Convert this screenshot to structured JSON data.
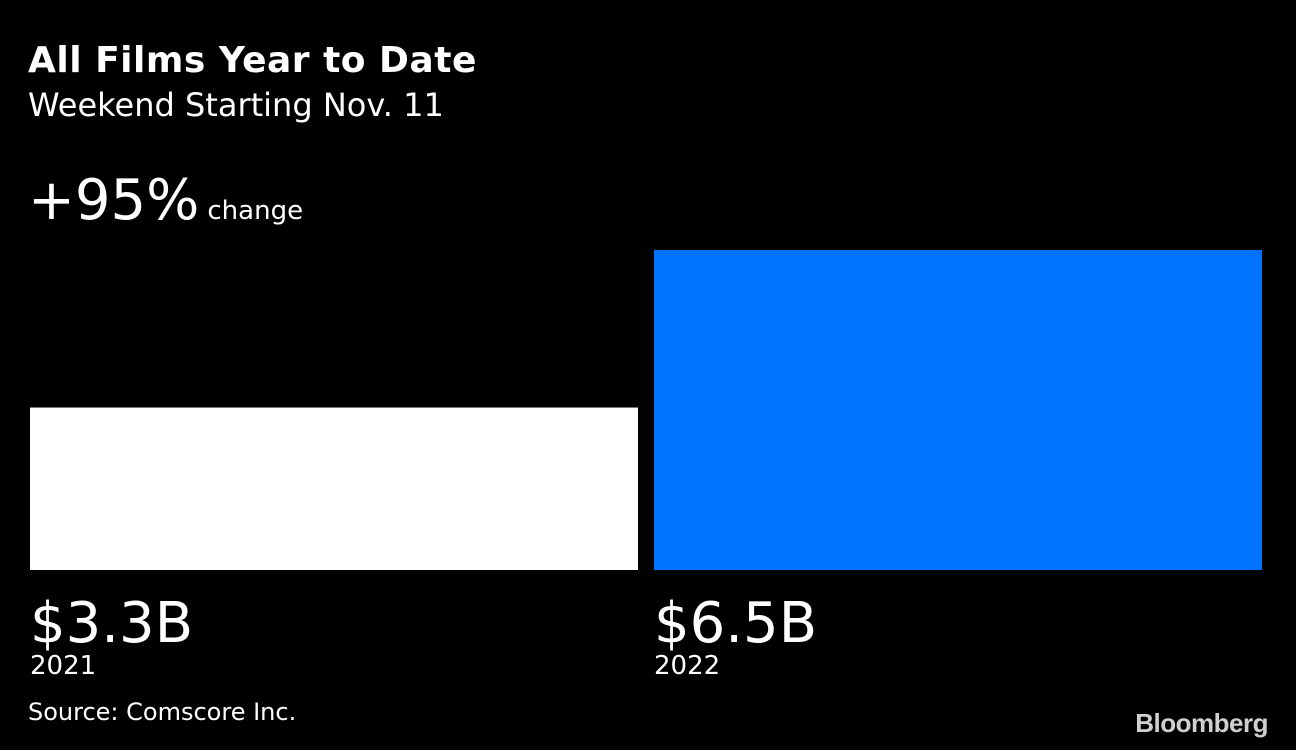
{
  "title": "All Films Year to Date",
  "subtitle": "Weekend Starting Nov. 11",
  "change": {
    "value": "+95%",
    "label": "change"
  },
  "source": "Source: Comscore Inc.",
  "brand": "Bloomberg",
  "colors": {
    "background": "#000000",
    "bar_2021": "#ffffff",
    "bar_2022": "#0073ff",
    "text": "#ffffff"
  },
  "chart_data": {
    "type": "bar",
    "categories": [
      "2021",
      "2022"
    ],
    "values": [
      3.3,
      6.5
    ],
    "value_labels": [
      "$3.3B",
      "$6.5B"
    ],
    "unit": "B",
    "title": "All Films Year to Date",
    "subtitle": "Weekend Starting Nov. 11",
    "xlabel": "",
    "ylabel": "",
    "grid": false,
    "legend": "none"
  }
}
